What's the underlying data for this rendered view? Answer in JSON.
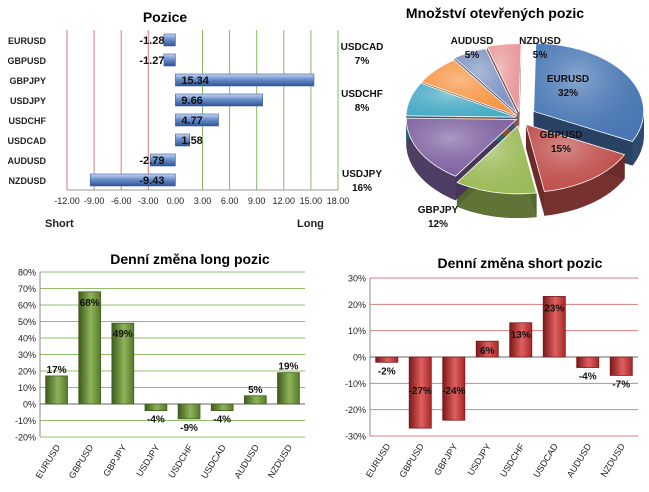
{
  "chart_data": [
    {
      "type": "bar",
      "orientation": "horizontal",
      "title": "Pozice",
      "categories": [
        "EURUSD",
        "GBPUSD",
        "GBPJPY",
        "USDJPY",
        "USDCHF",
        "USDCAD",
        "AUDUSD",
        "NZDUSD"
      ],
      "values": [
        -1.28,
        -1.27,
        15.34,
        9.66,
        4.77,
        1.58,
        -2.79,
        -9.43
      ],
      "value_labels": [
        "-1.28",
        "-1.27",
        "15.34",
        "9.66",
        "4.77",
        "1.58",
        "-2.79",
        "-9.43"
      ],
      "xlim": [
        -12,
        18
      ],
      "xticks": [
        "-12.00",
        "-9.00",
        "-6.00",
        "-3.00",
        "0.00",
        "3.00",
        "6.00",
        "9.00",
        "12.00",
        "15.00",
        "18.00"
      ],
      "left_label": "Short",
      "right_label": "Long",
      "colors": {
        "bar": "#4f76b8",
        "neg_grid": "#d97a7a",
        "pos_grid": "#86b86a"
      }
    },
    {
      "type": "pie",
      "title": "Množství otevřených pozic",
      "labels": [
        "EURUSD",
        "GBPUSD",
        "GBPJPY",
        "USDJPY",
        "USDCHF",
        "USDCAD",
        "AUDUSD",
        "NZDUSD"
      ],
      "values": [
        32,
        15,
        12,
        16,
        8,
        7,
        5,
        5
      ],
      "value_labels": [
        "32%",
        "15%",
        "12%",
        "16%",
        "8%",
        "7%",
        "5%",
        "5%"
      ],
      "colors": [
        "#4a78b4",
        "#c0504d",
        "#9bbb59",
        "#8064a2",
        "#4bacc6",
        "#f79646",
        "#7f95c2",
        "#e89a9a"
      ]
    },
    {
      "type": "bar",
      "title": "Denní změna long pozic",
      "categories": [
        "EURUSD",
        "GBPUSD",
        "GBPJPY",
        "USDJPY",
        "USDCHF",
        "USDCAD",
        "AUDUSD",
        "NZDUSD"
      ],
      "values": [
        17,
        68,
        49,
        -4,
        -9,
        -4,
        5,
        19
      ],
      "value_labels": [
        "17%",
        "68%",
        "49%",
        "-4%",
        "-9%",
        "-4%",
        "5%",
        "19%"
      ],
      "ylim": [
        -20,
        80
      ],
      "yticks": [
        "-20%",
        "-10%",
        "0%",
        "10%",
        "20%",
        "30%",
        "40%",
        "50%",
        "60%",
        "70%",
        "80%"
      ],
      "colors": {
        "bar": "#6b8e3a",
        "grid": "#8fbf6a"
      }
    },
    {
      "type": "bar",
      "title": "Denní změna short pozic",
      "categories": [
        "EURUSD",
        "GBPUSD",
        "GBPJPY",
        "USDJPY",
        "USDCHF",
        "USDCAD",
        "AUDUSD",
        "NZDUSD"
      ],
      "values": [
        -2,
        -27,
        -24,
        6,
        13,
        23,
        -4,
        -7
      ],
      "value_labels": [
        "-2%",
        "-27%",
        "-24%",
        "6%",
        "13%",
        "23%",
        "-4%",
        "-7%"
      ],
      "ylim": [
        -30,
        30
      ],
      "yticks": [
        "-30%",
        "-20%",
        "-10%",
        "0%",
        "10%",
        "20%",
        "30%"
      ],
      "colors": {
        "bar": "#c83a3a",
        "grid": "#d98080"
      }
    }
  ]
}
